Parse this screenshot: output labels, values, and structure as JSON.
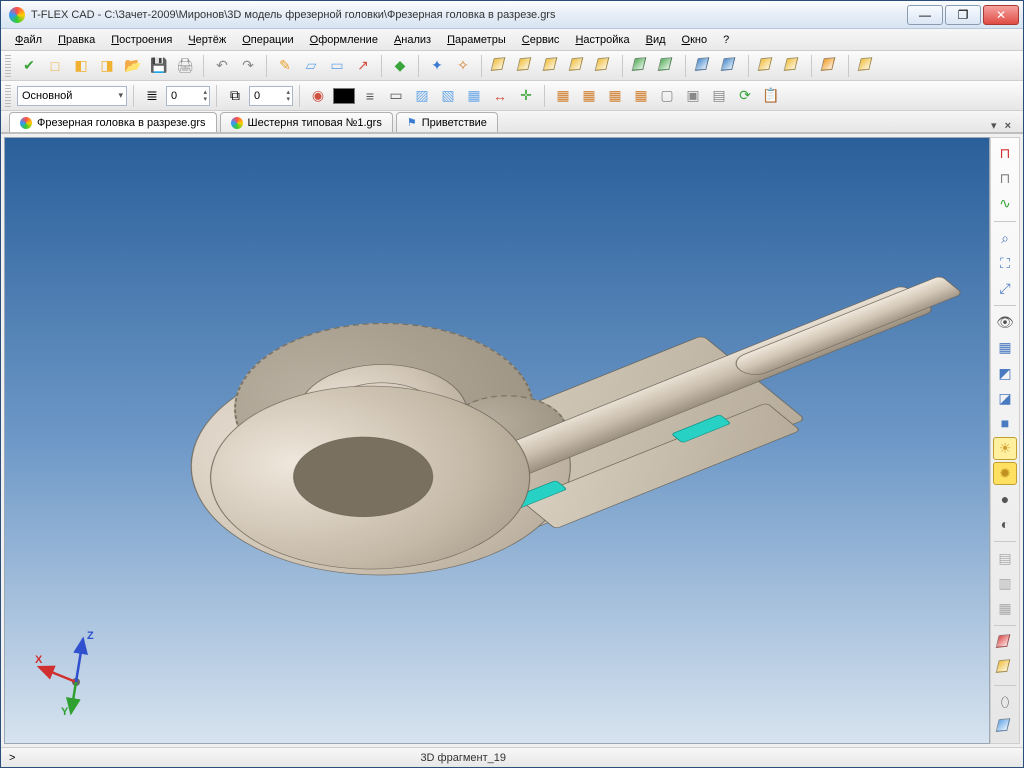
{
  "window": {
    "title": "T-FLEX CAD - C:\\Зачет-2009\\Миронов\\3D модель фрезерной головки\\Фрезерная головка в разрезе.grs"
  },
  "menu": [
    "Файл",
    "Правка",
    "Построения",
    "Чертёж",
    "Операции",
    "Оформление",
    "Анализ",
    "Параметры",
    "Сервис",
    "Настройка",
    "Вид",
    "Окно",
    "?"
  ],
  "toolbar1": {
    "icons": [
      {
        "name": "apply-icon",
        "glyph": "✔",
        "color": "#3aa53a"
      },
      {
        "name": "new-doc-icon",
        "glyph": "□",
        "color": "#f0b030"
      },
      {
        "name": "new-3d-icon",
        "glyph": "◧",
        "color": "#f0b030"
      },
      {
        "name": "new-asm-icon",
        "glyph": "◨",
        "color": "#f0b030"
      },
      {
        "name": "open-icon",
        "glyph": "📂",
        "color": "#e8b54a"
      },
      {
        "name": "save-icon",
        "glyph": "💾",
        "color": "#5a78d8"
      },
      {
        "name": "print-icon",
        "glyph": "🖨",
        "color": "#888"
      },
      {
        "name": "sep"
      },
      {
        "name": "undo-icon",
        "glyph": "↶",
        "color": "#888"
      },
      {
        "name": "redo-icon",
        "glyph": "↷",
        "color": "#888"
      },
      {
        "name": "sep"
      },
      {
        "name": "sketch-icon",
        "glyph": "✎",
        "color": "#e8a030"
      },
      {
        "name": "plane-icon",
        "glyph": "▱",
        "color": "#6aa8e8"
      },
      {
        "name": "workplane-icon",
        "glyph": "▭",
        "color": "#6aa8e8"
      },
      {
        "name": "axis-icon",
        "glyph": "↗",
        "color": "#d05040"
      },
      {
        "name": "sep"
      },
      {
        "name": "box-green-icon",
        "glyph": "◆",
        "color": "#3aa53a"
      },
      {
        "name": "sep"
      },
      {
        "name": "csys-icon",
        "glyph": "✦",
        "color": "#3a7ad0"
      },
      {
        "name": "csys2-icon",
        "glyph": "✧",
        "color": "#d08030"
      },
      {
        "name": "sep"
      },
      {
        "name": "extrude-icon",
        "cube": "#f0c040"
      },
      {
        "name": "revolve-icon",
        "cube": "#f0c040"
      },
      {
        "name": "cut-icon",
        "cube": "#f0c040"
      },
      {
        "name": "hole-icon",
        "cube": "#f0c040"
      },
      {
        "name": "shell-icon",
        "cube": "#f0c040"
      },
      {
        "name": "sep"
      },
      {
        "name": "fillet-icon",
        "cube": "#5ab060"
      },
      {
        "name": "chamfer-icon",
        "cube": "#5ab060"
      },
      {
        "name": "sep"
      },
      {
        "name": "pattern-icon",
        "cube": "#5090d0"
      },
      {
        "name": "mirror-icon",
        "cube": "#5090d0"
      },
      {
        "name": "sep"
      },
      {
        "name": "bool-add-icon",
        "cube": "#f0c040"
      },
      {
        "name": "bool-sub-icon",
        "cube": "#f0c040"
      },
      {
        "name": "sep"
      },
      {
        "name": "section-icon",
        "cube": "#f0a030"
      },
      {
        "name": "sep"
      },
      {
        "name": "material-icon",
        "cube": "#f0c040"
      }
    ]
  },
  "toolbar2": {
    "layer_label": "Основной",
    "level_value": "0",
    "priority_value": "0",
    "icons_mid": [
      {
        "name": "visibility-icon",
        "glyph": "◉",
        "color": "#d05040"
      },
      {
        "name": "color-well",
        "color": "#000000"
      },
      {
        "name": "linetype-icon",
        "glyph": "≡",
        "color": "#555"
      },
      {
        "name": "lineweight-icon",
        "glyph": "▭",
        "color": "#555"
      },
      {
        "name": "hatch1-icon",
        "glyph": "▨",
        "color": "#6aa8e8"
      },
      {
        "name": "hatch2-icon",
        "glyph": "▧",
        "color": "#6aa8e8"
      },
      {
        "name": "hatch3-icon",
        "glyph": "▦",
        "color": "#6aa8e8"
      },
      {
        "name": "dim-icon",
        "glyph": "↔",
        "color": "#d05040"
      },
      {
        "name": "csys3-icon",
        "glyph": "✛",
        "color": "#3aa53a"
      }
    ],
    "icons_right": [
      {
        "name": "grid-a-icon",
        "glyph": "▦",
        "color": "#d08030"
      },
      {
        "name": "grid-b-icon",
        "glyph": "▦",
        "color": "#d08030"
      },
      {
        "name": "grid-c-icon",
        "glyph": "▦",
        "color": "#d08030"
      },
      {
        "name": "grid-d-icon",
        "glyph": "▦",
        "color": "#d08030"
      },
      {
        "name": "snap-a-icon",
        "glyph": "▢",
        "color": "#888"
      },
      {
        "name": "snap-b-icon",
        "glyph": "▣",
        "color": "#888"
      },
      {
        "name": "snap-c-icon",
        "glyph": "▤",
        "color": "#888"
      },
      {
        "name": "update-icon",
        "glyph": "⟳",
        "color": "#3aa53a"
      },
      {
        "name": "clipboard-icon",
        "glyph": "📋",
        "color": "#d0a050"
      }
    ]
  },
  "tabs": [
    {
      "label": "Фрезерная головка в разрезе.grs",
      "icon": "model-icon",
      "active": true
    },
    {
      "label": "Шестерня типовая №1.grs",
      "icon": "model-icon",
      "active": false
    },
    {
      "label": "Приветствие",
      "icon": "flag-icon",
      "active": false
    }
  ],
  "right_toolbar": [
    {
      "name": "magnet-on-icon",
      "glyph": "⊓",
      "color": "#d03030"
    },
    {
      "name": "magnet-off-icon",
      "glyph": "⊓",
      "color": "#808080"
    },
    {
      "name": "snap-toggle-icon",
      "glyph": "∿",
      "color": "#3aa53a"
    },
    {
      "name": "sep"
    },
    {
      "name": "zoom-window-icon",
      "glyph": "⌕",
      "color": "#4a7ac0"
    },
    {
      "name": "zoom-fit-icon",
      "glyph": "⛶",
      "color": "#4a7ac0"
    },
    {
      "name": "zoom-all-icon",
      "glyph": "⤢",
      "color": "#4a7ac0"
    },
    {
      "name": "sep"
    },
    {
      "name": "eye-icon",
      "glyph": "👁",
      "color": "#555"
    },
    {
      "name": "wireframe-icon",
      "glyph": "▦",
      "color": "#4a7ac0"
    },
    {
      "name": "hidden-icon",
      "glyph": "◩",
      "color": "#4a7ac0"
    },
    {
      "name": "shade-edges-icon",
      "glyph": "◪",
      "color": "#4a7ac0"
    },
    {
      "name": "shaded-icon",
      "glyph": "■",
      "color": "#4a7ac0"
    },
    {
      "name": "render-a-icon",
      "glyph": "☀",
      "color": "#d0a030",
      "hl": "#fff0a0"
    },
    {
      "name": "render-b-icon",
      "glyph": "✹",
      "color": "#c09020",
      "hl": "#ffe060"
    },
    {
      "name": "render-c-icon",
      "glyph": "●",
      "color": "#555"
    },
    {
      "name": "render-d-icon",
      "glyph": "◐",
      "color": "#555"
    },
    {
      "name": "sep"
    },
    {
      "name": "layer-1-icon",
      "glyph": "▤",
      "color": "#aaa"
    },
    {
      "name": "layer-2-icon",
      "glyph": "▥",
      "color": "#aaa"
    },
    {
      "name": "layer-3-icon",
      "glyph": "▦",
      "color": "#aaa"
    },
    {
      "name": "sep"
    },
    {
      "name": "solid-red-icon",
      "cube": "#e05050"
    },
    {
      "name": "solid-yellow-icon",
      "cube": "#f0c040"
    },
    {
      "name": "sep"
    },
    {
      "name": "edge-icon",
      "glyph": "⬯",
      "color": "#777"
    },
    {
      "name": "iso-cube-icon",
      "cube": "#6aa8e8"
    }
  ],
  "triad": {
    "x": "X",
    "y": "Y",
    "z": "Z",
    "x_color": "#d03030",
    "y_color": "#30a030",
    "z_color": "#3050d0"
  },
  "viewport": {
    "bg_top": "#2a5f9a",
    "bg_mid": "#6d98c7",
    "bg_bot": "#d7e3ef",
    "metal_light": "#e9e1d6",
    "metal_mid": "#cfc4b4",
    "metal_dark": "#a99e8d",
    "bearing_color": "#27d1c3"
  },
  "status": {
    "left": ">",
    "center": "3D фрагмент_19"
  }
}
